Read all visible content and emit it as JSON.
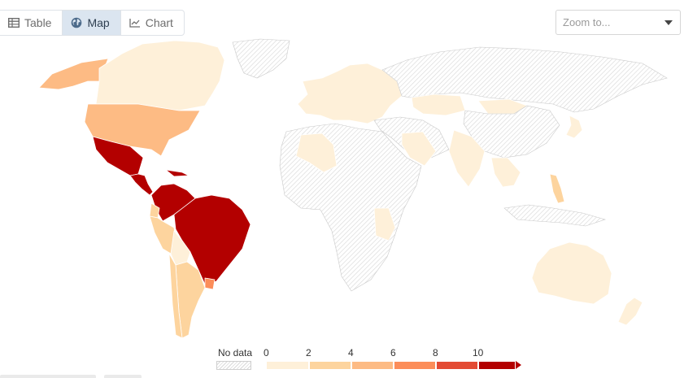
{
  "tabs": [
    {
      "label": "Table",
      "icon": "table-icon",
      "active": false
    },
    {
      "label": "Map",
      "icon": "globe-icon",
      "active": true
    },
    {
      "label": "Chart",
      "icon": "line-chart-icon",
      "active": false
    }
  ],
  "zoom": {
    "placeholder": "Zoom to..."
  },
  "legend": {
    "no_data_label": "No data",
    "ticks": [
      "0",
      "2",
      "4",
      "6",
      "8",
      "10"
    ],
    "bin_colors": [
      "#fef0d9",
      "#fdd49e",
      "#fdbb84",
      "#fc8d59",
      "#e34a33",
      "#b30000"
    ]
  },
  "colors": {
    "accent_tab_bg": "#dbe5f0",
    "no_data_hatch": "#d9d9d9"
  },
  "map": {
    "regions": [
      {
        "name": "Alaska",
        "bin": 2
      },
      {
        "name": "Canada",
        "bin": 0
      },
      {
        "name": "United States",
        "bin": 2
      },
      {
        "name": "Mexico",
        "bin": 5
      },
      {
        "name": "Cuba",
        "bin": 5
      },
      {
        "name": "Central America",
        "bin": 5
      },
      {
        "name": "Colombia-Venezuela",
        "bin": 5
      },
      {
        "name": "Brazil",
        "bin": 5
      },
      {
        "name": "Ecuador",
        "bin": 1
      },
      {
        "name": "Peru",
        "bin": 1
      },
      {
        "name": "Bolivia",
        "bin": 0
      },
      {
        "name": "Chile",
        "bin": 1
      },
      {
        "name": "Argentina",
        "bin": 1
      },
      {
        "name": "Uruguay",
        "bin": 3
      },
      {
        "name": "Greenland",
        "bin": null
      },
      {
        "name": "Europe",
        "bin": 0
      },
      {
        "name": "Russia",
        "bin": null
      },
      {
        "name": "Kazakhstan",
        "bin": 0
      },
      {
        "name": "China",
        "bin": null
      },
      {
        "name": "India",
        "bin": 0
      },
      {
        "name": "Mongolia",
        "bin": 0
      },
      {
        "name": "Africa",
        "bin": null
      },
      {
        "name": "Algeria",
        "bin": 0
      },
      {
        "name": "Zambia",
        "bin": 0
      },
      {
        "name": "Saudi Arabia",
        "bin": 0
      },
      {
        "name": "Southeast Asia",
        "bin": 0
      },
      {
        "name": "Philippines",
        "bin": 1
      },
      {
        "name": "Japan",
        "bin": 0
      },
      {
        "name": "Indonesia",
        "bin": null
      },
      {
        "name": "Australia",
        "bin": 0
      },
      {
        "name": "New Zealand",
        "bin": 0
      }
    ]
  }
}
